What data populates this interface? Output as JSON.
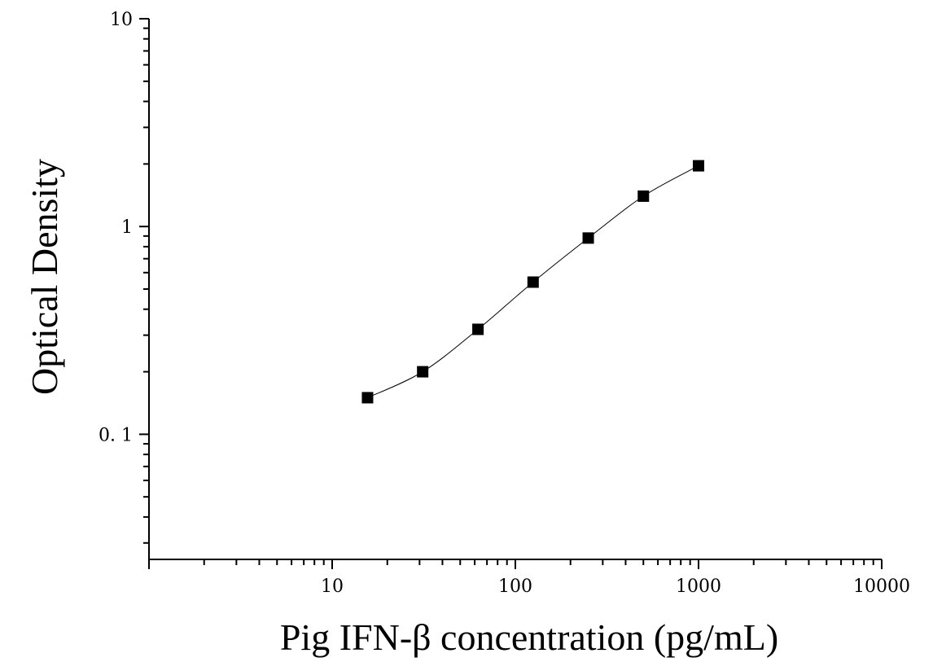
{
  "chart_data": {
    "type": "scatter",
    "title": "",
    "xlabel": "Pig IFN-β concentration (pg/mL)",
    "ylabel": "Optical Density",
    "x_scale": "log",
    "y_scale": "log",
    "xlim": [
      1,
      10000
    ],
    "ylim": [
      0.025,
      10
    ],
    "x_tick_labels": [
      "10",
      "100",
      "1000",
      "10000"
    ],
    "y_tick_labels": [
      "0. 1",
      "1",
      "10"
    ],
    "grid": false,
    "legend": "none",
    "series": [
      {
        "x": [
          15.6,
          31.2,
          62.5,
          125,
          250,
          500,
          1000
        ],
        "y": [
          0.15,
          0.2,
          0.32,
          0.54,
          0.88,
          1.4,
          1.96
        ]
      }
    ]
  }
}
